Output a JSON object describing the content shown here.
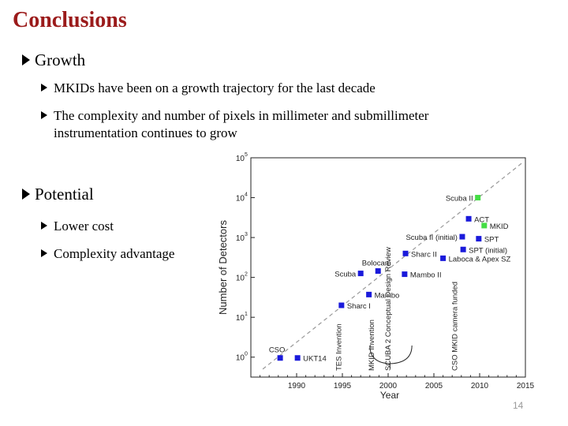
{
  "slide": {
    "title": "Conclusions",
    "page_number": "14"
  },
  "sections": [
    {
      "heading": "Growth",
      "items": [
        "MKIDs have been on a growth trajectory for the last decade",
        "The complexity and number of pixels in millimeter and submillimeter instrumentation continues to grow"
      ]
    },
    {
      "heading": "Potential",
      "items": [
        "Lower cost",
        "Complexity advantage"
      ]
    }
  ],
  "colors": {
    "title": "#9b1b1b",
    "blue_marker": "#1a1adb",
    "green_marker": "#44dd44",
    "trend_line": "#999999"
  },
  "chart_data": {
    "type": "scatter",
    "xlabel": "Year",
    "ylabel": "Number of Detectors",
    "xlim": [
      1985,
      2015
    ],
    "ylim_log10": [
      -0.5,
      5
    ],
    "x_ticks": [
      "1990",
      "1995",
      "2000",
      "2005",
      "2010",
      "2015"
    ],
    "x_tick_values": [
      1990,
      1995,
      2000,
      2005,
      2010,
      2015
    ],
    "y_ticks": [
      "10",
      "10",
      "10",
      "10",
      "10",
      "10"
    ],
    "y_tick_exponents": [
      "0",
      "1",
      "2",
      "3",
      "4",
      "5"
    ],
    "y_tick_values": [
      0,
      1,
      2,
      3,
      4,
      5
    ],
    "trend_line": {
      "x": [
        1986.3,
        2014.8
      ],
      "log10_y": [
        -0.3,
        4.9
      ]
    },
    "points": [
      {
        "label": "CSO",
        "x": 1988.2,
        "log10_y": -0.02,
        "color": "blue",
        "label_side": "above-left"
      },
      {
        "label": "UKT14",
        "x": 1990.1,
        "log10_y": -0.02,
        "color": "blue",
        "label_side": "right"
      },
      {
        "label": "Sharc I",
        "x": 1994.9,
        "log10_y": 1.3,
        "color": "blue",
        "label_side": "right"
      },
      {
        "label": "Mambo",
        "x": 1997.9,
        "log10_y": 1.57,
        "color": "blue",
        "label_side": "right"
      },
      {
        "label": "Scuba",
        "x": 1997.0,
        "log10_y": 2.1,
        "color": "blue",
        "label_side": "left"
      },
      {
        "label": "Bolocam",
        "x": 1998.9,
        "log10_y": 2.16,
        "color": "blue",
        "label_side": "above"
      },
      {
        "label": "Mambo II",
        "x": 2001.8,
        "log10_y": 2.08,
        "color": "blue",
        "label_side": "right"
      },
      {
        "label": "Sharc II",
        "x": 2001.9,
        "log10_y": 2.6,
        "color": "blue",
        "label_side": "right"
      },
      {
        "label": "Laboca & Apex SZ",
        "x": 2006.0,
        "log10_y": 2.48,
        "color": "blue",
        "label_side": "right"
      },
      {
        "label": "SPT (initial)",
        "x": 2008.2,
        "log10_y": 2.7,
        "color": "blue",
        "label_side": "right"
      },
      {
        "label": "Scuba II (initial)",
        "x": 2008.1,
        "log10_y": 3.02,
        "color": "blue",
        "label_side": "left"
      },
      {
        "label": "SPT",
        "x": 2009.9,
        "log10_y": 2.97,
        "color": "blue",
        "label_side": "right"
      },
      {
        "label": "ACT",
        "x": 2008.8,
        "log10_y": 3.47,
        "color": "blue",
        "label_side": "right"
      },
      {
        "label": "MKID",
        "x": 2010.5,
        "log10_y": 3.3,
        "color": "green",
        "label_side": "right"
      },
      {
        "label": "Scuba II",
        "x": 2009.8,
        "log10_y": 4.0,
        "color": "green",
        "label_side": "left"
      }
    ],
    "vertical_annotations": [
      {
        "label": "TES Invention",
        "x": 1994.6
      },
      {
        "label": "MKID Invention",
        "x": 1998.2
      },
      {
        "label": "SCUBA 2 Conceptual Design Review",
        "x": 2000.0
      },
      {
        "label": "CSO MKID camera funded",
        "x": 2007.3
      }
    ]
  }
}
